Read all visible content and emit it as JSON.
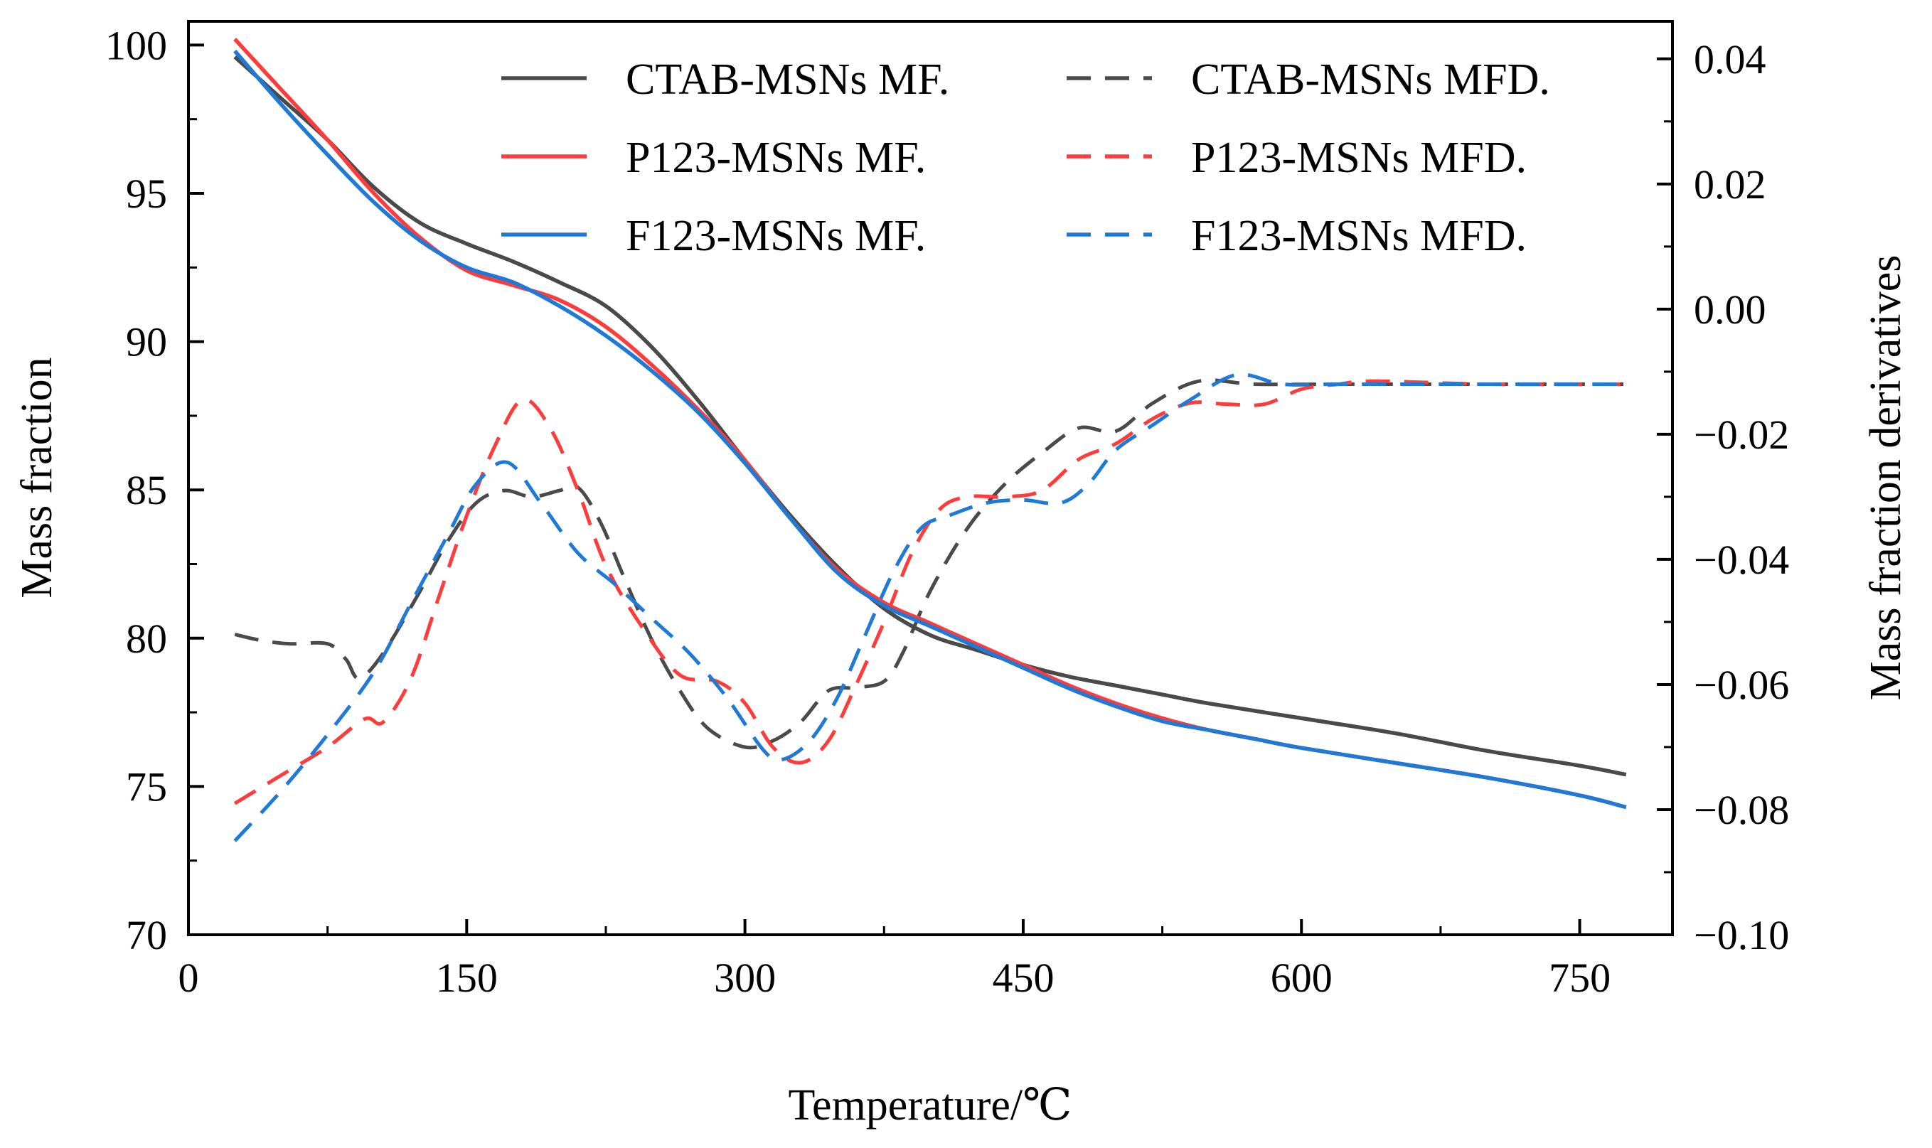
{
  "chart_data": {
    "type": "line",
    "title": "",
    "xlabel": "Temperature/℃",
    "ylabel": "Mass fraction",
    "y2label": "Mass fraction derivatives",
    "xlim": [
      0,
      800
    ],
    "ylim": [
      70,
      100.8
    ],
    "y2lim": [
      -0.1,
      0.046
    ],
    "xticks": [
      "0",
      "150",
      "300",
      "450",
      "600",
      "750"
    ],
    "xtick_values": [
      0,
      150,
      300,
      450,
      600,
      750
    ],
    "yticks": [
      "70",
      "75",
      "80",
      "85",
      "90",
      "95",
      "100"
    ],
    "ytick_values": [
      70,
      75,
      80,
      85,
      90,
      95,
      100
    ],
    "y2ticks": [
      "−0.10",
      "−0.08",
      "−0.06",
      "−0.04",
      "−0.02",
      "0.00",
      "0.02",
      "0.04"
    ],
    "y2tick_values": [
      -0.1,
      -0.08,
      -0.06,
      -0.04,
      -0.02,
      0.0,
      0.02,
      0.04
    ],
    "grid": false,
    "legend_position": "top-right",
    "series": [
      {
        "name": "CTAB-MSNs MF.",
        "axis": "left",
        "style": "solid",
        "color": "#4a4a4a",
        "points": [
          [
            25,
            99.6
          ],
          [
            50,
            98.2
          ],
          [
            75,
            96.8
          ],
          [
            100,
            95.2
          ],
          [
            125,
            94
          ],
          [
            150,
            93.3
          ],
          [
            175,
            92.7
          ],
          [
            200,
            92
          ],
          [
            225,
            91.2
          ],
          [
            250,
            89.8
          ],
          [
            275,
            88
          ],
          [
            300,
            86
          ],
          [
            325,
            84.1
          ],
          [
            350,
            82.4
          ],
          [
            375,
            81
          ],
          [
            400,
            80.1
          ],
          [
            425,
            79.6
          ],
          [
            450,
            79.1
          ],
          [
            475,
            78.7
          ],
          [
            500,
            78.4
          ],
          [
            525,
            78.1
          ],
          [
            550,
            77.8
          ],
          [
            600,
            77.3
          ],
          [
            650,
            76.8
          ],
          [
            700,
            76.2
          ],
          [
            750,
            75.7
          ],
          [
            775,
            75.4
          ]
        ]
      },
      {
        "name": "P123-MSNs MF.",
        "axis": "left",
        "style": "solid",
        "color": "#ff3b3b",
        "points": [
          [
            25,
            100.2
          ],
          [
            50,
            98.5
          ],
          [
            75,
            96.8
          ],
          [
            100,
            95
          ],
          [
            125,
            93.5
          ],
          [
            150,
            92.4
          ],
          [
            175,
            91.9
          ],
          [
            200,
            91.4
          ],
          [
            225,
            90.5
          ],
          [
            250,
            89.2
          ],
          [
            275,
            87.7
          ],
          [
            300,
            86
          ],
          [
            325,
            84
          ],
          [
            350,
            82.3
          ],
          [
            375,
            81.2
          ],
          [
            400,
            80.5
          ],
          [
            425,
            79.8
          ],
          [
            450,
            79.1
          ],
          [
            475,
            78.4
          ],
          [
            500,
            77.8
          ],
          [
            525,
            77.3
          ],
          [
            550,
            76.9
          ],
          [
            575,
            76.6
          ],
          [
            600,
            76.3
          ],
          [
            650,
            75.8
          ],
          [
            700,
            75.3
          ],
          [
            750,
            74.7
          ],
          [
            775,
            74.3
          ]
        ]
      },
      {
        "name": "F123-MSNs MF.",
        "axis": "left",
        "style": "solid",
        "color": "#1e7ad6",
        "points": [
          [
            25,
            99.8
          ],
          [
            50,
            98
          ],
          [
            75,
            96.3
          ],
          [
            100,
            94.7
          ],
          [
            125,
            93.4
          ],
          [
            150,
            92.5
          ],
          [
            175,
            92
          ],
          [
            200,
            91.2
          ],
          [
            225,
            90.2
          ],
          [
            250,
            89
          ],
          [
            275,
            87.6
          ],
          [
            300,
            85.9
          ],
          [
            325,
            84
          ],
          [
            350,
            82.2
          ],
          [
            375,
            81.1
          ],
          [
            400,
            80.4
          ],
          [
            425,
            79.7
          ],
          [
            450,
            79
          ],
          [
            475,
            78.3
          ],
          [
            500,
            77.7
          ],
          [
            525,
            77.2
          ],
          [
            550,
            76.9
          ],
          [
            575,
            76.6
          ],
          [
            600,
            76.3
          ],
          [
            650,
            75.8
          ],
          [
            700,
            75.3
          ],
          [
            750,
            74.7
          ],
          [
            775,
            74.3
          ]
        ]
      },
      {
        "name": "CTAB-MSNs MFD.",
        "axis": "right",
        "style": "dashed",
        "color": "#4a4a4a",
        "points": [
          [
            25,
            -0.052
          ],
          [
            40,
            -0.053
          ],
          [
            55,
            -0.0535
          ],
          [
            75,
            -0.0535
          ],
          [
            85,
            -0.056
          ],
          [
            92,
            -0.059
          ],
          [
            105,
            -0.055
          ],
          [
            125,
            -0.045
          ],
          [
            140,
            -0.037
          ],
          [
            155,
            -0.031
          ],
          [
            170,
            -0.029
          ],
          [
            185,
            -0.03
          ],
          [
            200,
            -0.029
          ],
          [
            210,
            -0.0285
          ],
          [
            222,
            -0.034
          ],
          [
            235,
            -0.043
          ],
          [
            250,
            -0.053
          ],
          [
            265,
            -0.061
          ],
          [
            280,
            -0.067
          ],
          [
            300,
            -0.07
          ],
          [
            315,
            -0.069
          ],
          [
            330,
            -0.066
          ],
          [
            345,
            -0.061
          ],
          [
            360,
            -0.0605
          ],
          [
            375,
            -0.0595
          ],
          [
            385,
            -0.055
          ],
          [
            400,
            -0.045
          ],
          [
            420,
            -0.035
          ],
          [
            440,
            -0.028
          ],
          [
            460,
            -0.023
          ],
          [
            480,
            -0.019
          ],
          [
            500,
            -0.0195
          ],
          [
            520,
            -0.015
          ],
          [
            545,
            -0.0115
          ],
          [
            575,
            -0.012
          ],
          [
            620,
            -0.012
          ],
          [
            700,
            -0.012
          ],
          [
            775,
            -0.012
          ]
        ]
      },
      {
        "name": "P123-MSNs MFD.",
        "axis": "right",
        "style": "dashed",
        "color": "#ff3b3b",
        "points": [
          [
            25,
            -0.079
          ],
          [
            50,
            -0.0745
          ],
          [
            75,
            -0.07
          ],
          [
            95,
            -0.0655
          ],
          [
            105,
            -0.066
          ],
          [
            120,
            -0.059
          ],
          [
            135,
            -0.046
          ],
          [
            150,
            -0.033
          ],
          [
            165,
            -0.022
          ],
          [
            180,
            -0.0145
          ],
          [
            195,
            -0.019
          ],
          [
            210,
            -0.029
          ],
          [
            225,
            -0.041
          ],
          [
            245,
            -0.051
          ],
          [
            265,
            -0.0585
          ],
          [
            285,
            -0.0595
          ],
          [
            300,
            -0.063
          ],
          [
            315,
            -0.07
          ],
          [
            330,
            -0.0725
          ],
          [
            345,
            -0.069
          ],
          [
            360,
            -0.06
          ],
          [
            375,
            -0.05
          ],
          [
            390,
            -0.039
          ],
          [
            405,
            -0.032
          ],
          [
            420,
            -0.03
          ],
          [
            440,
            -0.03
          ],
          [
            460,
            -0.029
          ],
          [
            480,
            -0.024
          ],
          [
            500,
            -0.0215
          ],
          [
            520,
            -0.0175
          ],
          [
            540,
            -0.015
          ],
          [
            560,
            -0.0152
          ],
          [
            580,
            -0.0152
          ],
          [
            600,
            -0.0128
          ],
          [
            620,
            -0.012
          ],
          [
            640,
            -0.0115
          ],
          [
            700,
            -0.012
          ],
          [
            775,
            -0.012
          ]
        ]
      },
      {
        "name": "F123-MSNs MFD.",
        "axis": "right",
        "style": "dashed",
        "color": "#1e7ad6",
        "points": [
          [
            25,
            -0.085
          ],
          [
            50,
            -0.077
          ],
          [
            75,
            -0.068
          ],
          [
            100,
            -0.058
          ],
          [
            120,
            -0.047
          ],
          [
            140,
            -0.036
          ],
          [
            155,
            -0.028
          ],
          [
            172,
            -0.0245
          ],
          [
            190,
            -0.031
          ],
          [
            210,
            -0.039
          ],
          [
            230,
            -0.044
          ],
          [
            250,
            -0.0495
          ],
          [
            270,
            -0.055
          ],
          [
            290,
            -0.062
          ],
          [
            310,
            -0.0705
          ],
          [
            320,
            -0.072
          ],
          [
            335,
            -0.069
          ],
          [
            350,
            -0.062
          ],
          [
            365,
            -0.052
          ],
          [
            380,
            -0.042
          ],
          [
            395,
            -0.035
          ],
          [
            410,
            -0.033
          ],
          [
            430,
            -0.031
          ],
          [
            450,
            -0.0305
          ],
          [
            470,
            -0.031
          ],
          [
            485,
            -0.028
          ],
          [
            500,
            -0.0225
          ],
          [
            520,
            -0.0185
          ],
          [
            540,
            -0.0145
          ],
          [
            565,
            -0.0105
          ],
          [
            590,
            -0.012
          ],
          [
            620,
            -0.012
          ],
          [
            700,
            -0.012
          ],
          [
            775,
            -0.012
          ]
        ]
      }
    ]
  }
}
